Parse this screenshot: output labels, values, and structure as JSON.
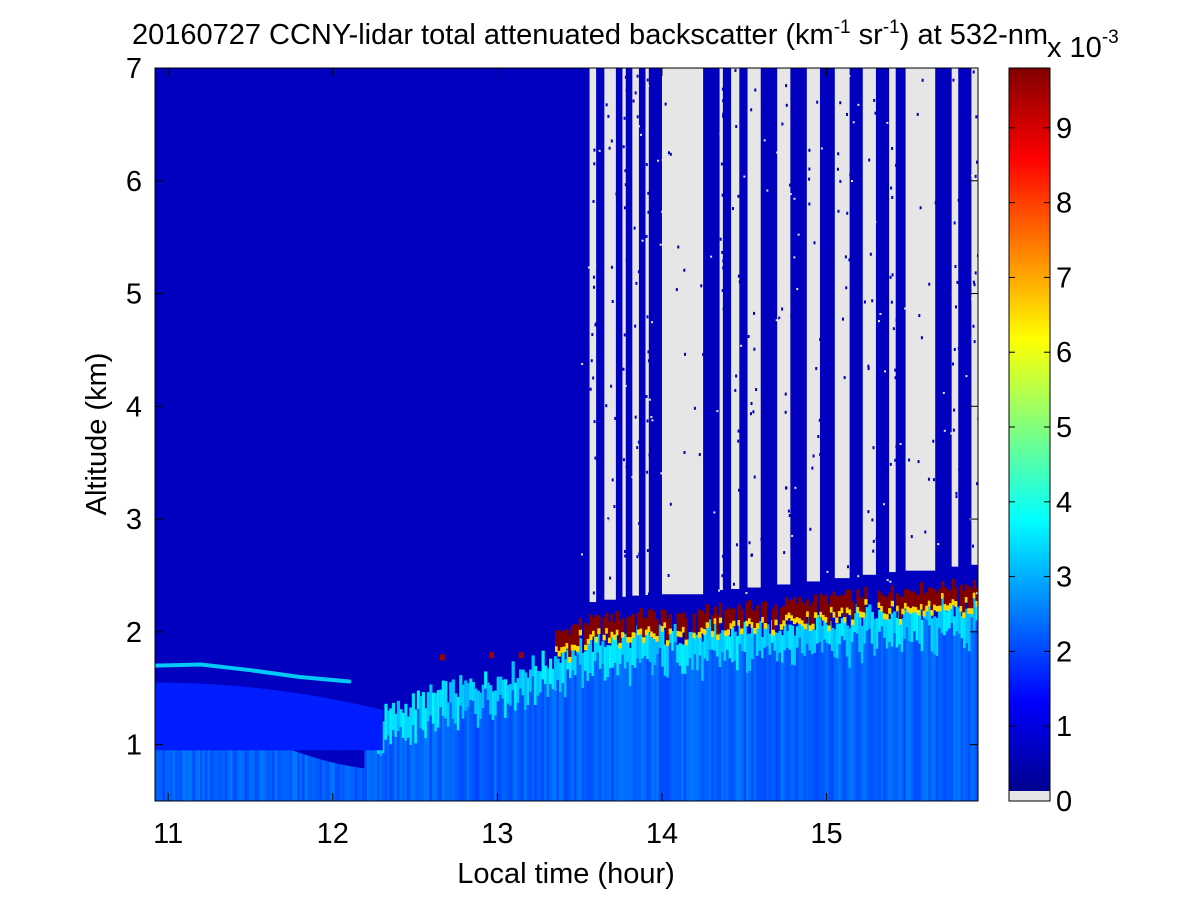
{
  "chart_data": {
    "type": "heatmap",
    "title_parts": {
      "pre": "20160727 CCNY-lidar total attenuated backscatter (km",
      "sup1": "-1",
      "mid": " sr",
      "sup2": "-1",
      "post": ") at 532-nm"
    },
    "xlabel": "Local time (hour)",
    "ylabel": "Altitude (km)",
    "xlim": [
      10.92,
      15.92
    ],
    "ylim": [
      0.5,
      7
    ],
    "x_ticks": [
      "11",
      "12",
      "13",
      "14",
      "15"
    ],
    "y_ticks": [
      "1",
      "2",
      "3",
      "4",
      "5",
      "6",
      "7"
    ],
    "colorbar": {
      "min": 0,
      "max": 9.8,
      "ticks": [
        "0",
        "1",
        "2",
        "3",
        "4",
        "5",
        "6",
        "7",
        "8",
        "9"
      ],
      "multiplier_base": "x 10",
      "multiplier_exp": "-3",
      "colormap": "jet",
      "no_data_color": "#e6e6e6"
    },
    "background_value": 0.6,
    "residual_layer": {
      "x": [
        10.92,
        11.2,
        11.5,
        11.8,
        12.1
      ],
      "altitude_km": [
        1.7,
        1.71,
        1.66,
        1.6,
        1.56
      ],
      "value": 3.5
    },
    "boundary_layer_top": {
      "x": [
        12.2,
        12.6,
        13.0,
        13.3,
        13.5,
        13.8,
        14.1,
        14.5,
        14.9,
        15.3,
        15.7,
        15.92
      ],
      "altitude_km": [
        1.2,
        1.45,
        1.6,
        1.75,
        1.9,
        1.97,
        1.99,
        2.04,
        2.1,
        2.17,
        2.22,
        2.25
      ]
    },
    "cloud_layer_value": 9.8,
    "no_data_start_x": 13.5,
    "no_data_bands": [
      [
        13.56,
        13.6
      ],
      [
        13.65,
        13.72
      ],
      [
        13.76,
        13.78
      ],
      [
        13.82,
        13.86
      ],
      [
        13.9,
        13.92
      ],
      [
        14.0,
        14.25
      ],
      [
        14.35,
        14.37
      ],
      [
        14.42,
        14.47
      ],
      [
        14.52,
        14.6
      ],
      [
        14.7,
        14.78
      ],
      [
        14.88,
        14.96
      ],
      [
        15.05,
        15.14
      ],
      [
        15.22,
        15.3
      ],
      [
        15.38,
        15.42
      ],
      [
        15.48,
        15.66
      ],
      [
        15.76,
        15.8
      ],
      [
        15.88,
        15.92
      ]
    ]
  }
}
